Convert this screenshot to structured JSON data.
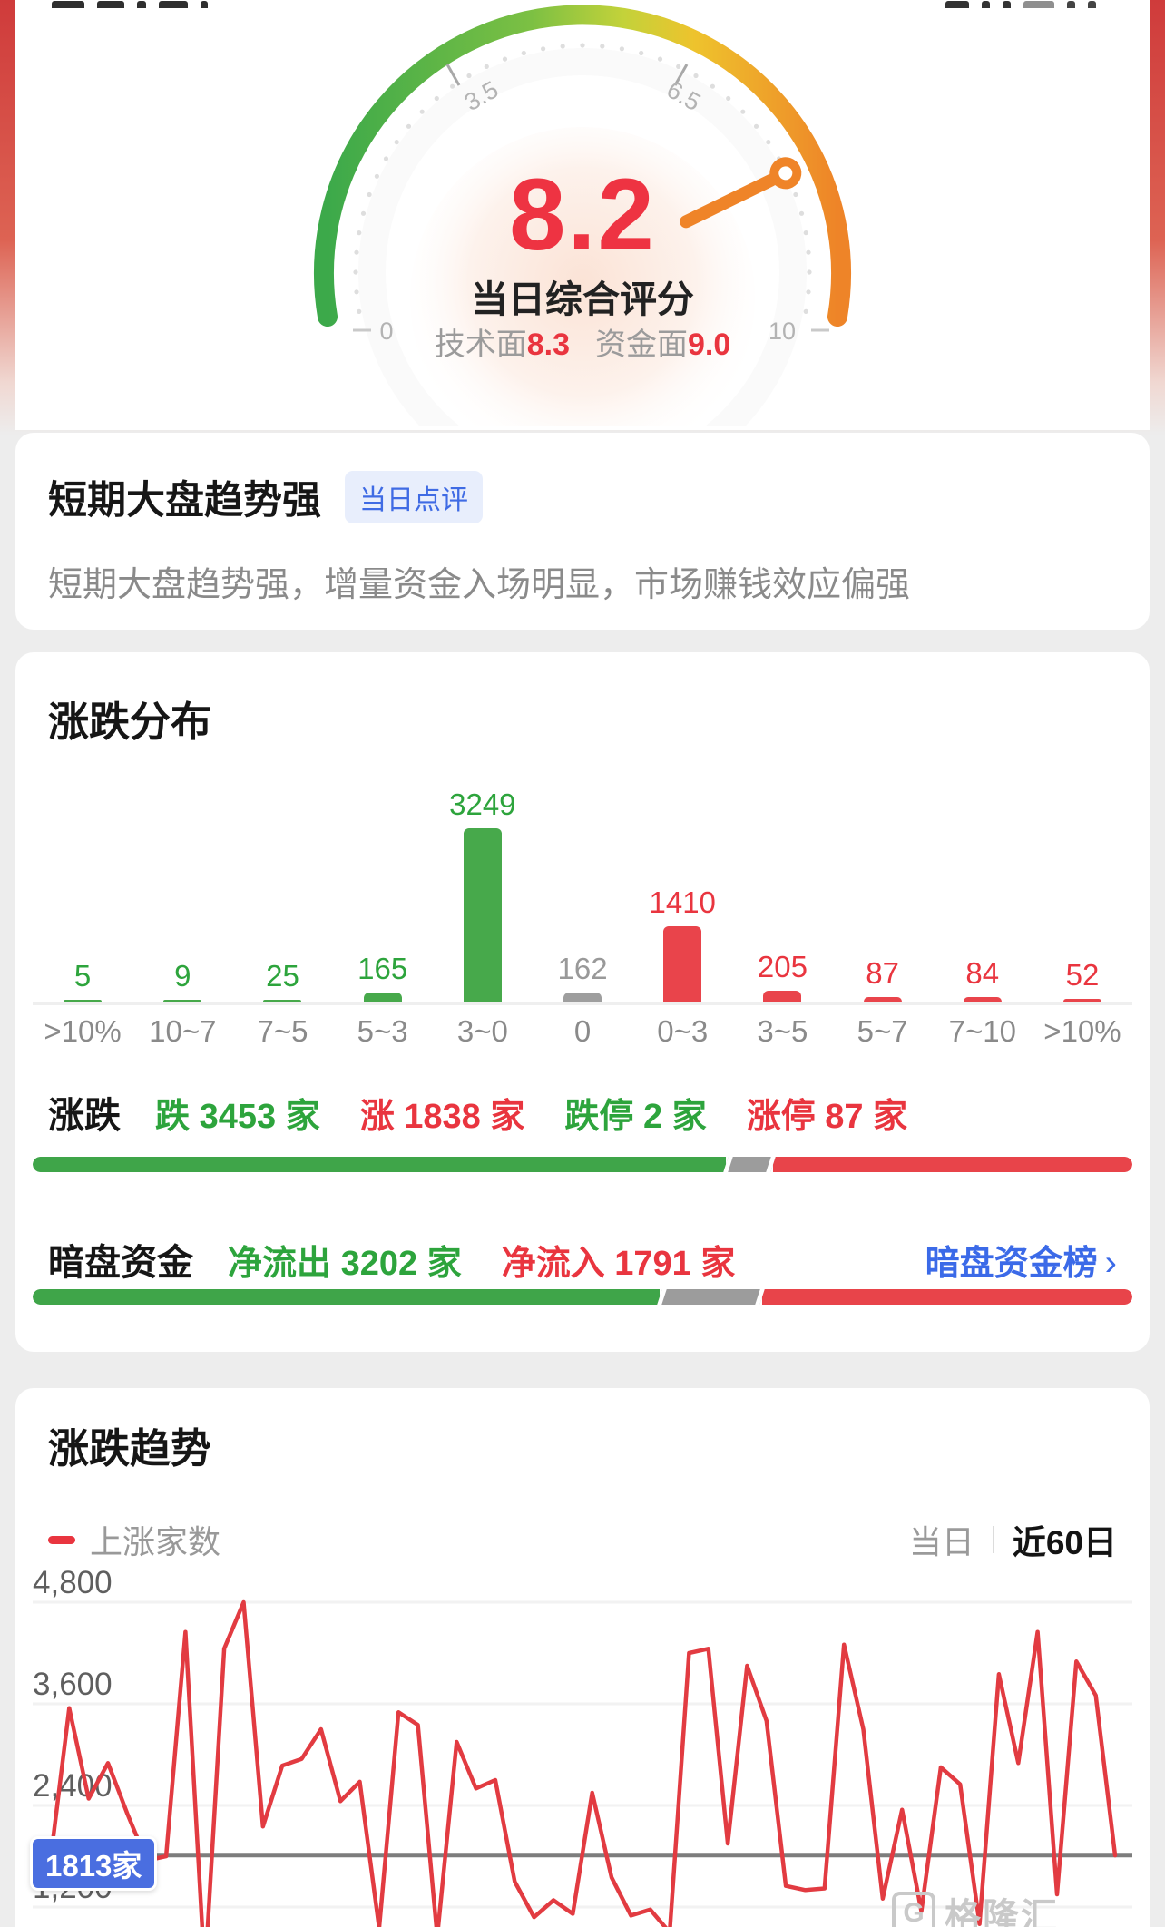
{
  "gauge": {
    "score": "8.2",
    "score_value": 8.2,
    "title": "当日综合评分",
    "tech_label": "技术面",
    "tech_value": "8.3",
    "fund_label": "资金面",
    "fund_value": "9.0",
    "tick_min": "0",
    "tick_max": "10",
    "tick_left": "3.5",
    "tick_right": "6.5"
  },
  "comment": {
    "title": "短期大盘趋势强",
    "badge": "当日点评",
    "text": "短期大盘趋势强，增量资金入场明显，市场赚钱效应偏强"
  },
  "distribution": {
    "title": "涨跌分布"
  },
  "updown": {
    "label": "涨跌",
    "items": [
      {
        "name": "跌",
        "value": "3453",
        "unit": "家"
      },
      {
        "name": "涨",
        "value": "1838",
        "unit": "家"
      },
      {
        "name": "跌停",
        "value": "2",
        "unit": "家"
      },
      {
        "name": "涨停",
        "value": "87",
        "unit": "家"
      }
    ],
    "bar": {
      "green_pct": 63,
      "gray_pct": 3.5,
      "red_pct": 33.5
    }
  },
  "dark_pool": {
    "label": "暗盘资金",
    "outflow_name": "净流出",
    "outflow_value": "3202",
    "inflow_name": "净流入",
    "inflow_value": "1791",
    "unit": "家",
    "link_label": "暗盘资金榜",
    "chevron": "›",
    "bar": {
      "green_pct": 57,
      "gray_pct": 8.5,
      "red_pct": 34.5
    }
  },
  "trend": {
    "title": "涨跌趋势",
    "legend": "上涨家数",
    "tab_day": "当日",
    "tab_60": "近60日",
    "marker_label": "1813家"
  },
  "watermark": {
    "logo_letter": "G",
    "text": "格隆汇"
  },
  "colors": {
    "up_red": "#e9353f",
    "down_green": "#2da43c",
    "neutral_gray": "#9e9e9e",
    "link_blue": "#3b6ae8",
    "marker_blue": "#4a6ee0",
    "line_red": "#e23b41"
  },
  "chart_data": [
    {
      "type": "bar",
      "title": "涨跌分布",
      "categories": [
        ">10%",
        "10~7",
        "7~5",
        "5~3",
        "3~0",
        "0",
        "0~3",
        "3~5",
        "5~7",
        "7~10",
        ">10%"
      ],
      "values": [
        5,
        9,
        25,
        165,
        3249,
        162,
        1410,
        205,
        87,
        84,
        52
      ],
      "tones": [
        "green",
        "green",
        "green",
        "green",
        "green",
        "gray",
        "red",
        "red",
        "red",
        "red",
        "red"
      ],
      "ylim": [
        0,
        3249
      ],
      "note": "green bars = declines, gray = flat, red = gains"
    },
    {
      "type": "line",
      "title": "涨跌趋势 近60日",
      "series": [
        {
          "name": "上涨家数",
          "values": [
            1700,
            3550,
            2480,
            2900,
            2300,
            1750,
            1800,
            4450,
            400,
            4250,
            4800,
            2150,
            2870,
            2950,
            3300,
            2450,
            2680,
            950,
            3500,
            3350,
            850,
            3150,
            2600,
            2700,
            1500,
            1080,
            1280,
            1120,
            2550,
            1550,
            1100,
            1170,
            900,
            4200,
            4250,
            1950,
            4050,
            3400,
            1450,
            1400,
            1420,
            4300,
            3300,
            1300,
            2350,
            1150,
            2850,
            2650,
            1000,
            3950,
            2900,
            4450,
            1350,
            4100,
            3700,
            1810
          ]
        }
      ],
      "yticks": [
        {
          "label": "4,800",
          "value": 4800
        },
        {
          "label": "3,600",
          "value": 3600
        },
        {
          "label": "2,400",
          "value": 2400
        },
        {
          "label": "1,200",
          "value": 1200
        }
      ],
      "marker": {
        "label": "1813家",
        "value": 1813
      },
      "legend_position": "top-left",
      "grid": true
    }
  ]
}
